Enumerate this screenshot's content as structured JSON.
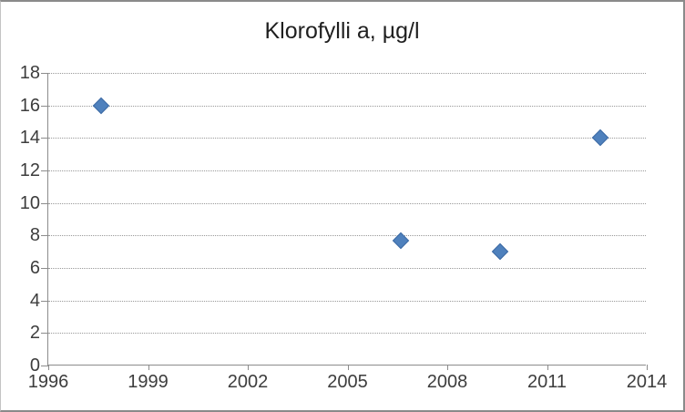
{
  "chart_data": {
    "type": "scatter",
    "title": "Klorofylli a, µg/l",
    "series": [
      {
        "name": "Klorofylli a",
        "x": [
          1997.6,
          2006.6,
          2009.6,
          2012.6
        ],
        "y": [
          16.0,
          7.7,
          7.0,
          14.0
        ]
      }
    ],
    "xlabel": "",
    "ylabel": "",
    "xlim": [
      1996,
      2014
    ],
    "ylim": [
      0,
      18
    ],
    "x_ticks": [
      1996,
      1999,
      2002,
      2005,
      2008,
      2011,
      2014
    ],
    "y_ticks": [
      0,
      2,
      4,
      6,
      8,
      10,
      12,
      14,
      16,
      18
    ],
    "grid": "horizontal-dotted",
    "legend_position": "none",
    "marker": {
      "shape": "diamond",
      "fill": "#4f81bd",
      "border": "#3d6ba5"
    },
    "colors": {
      "background": "#ffffff",
      "chart_border": "#8a8a8a",
      "axis_line": "#8c8c8c",
      "gridline": "#999999",
      "tick_label": "#3d3d3d",
      "title": "#1f1f1f"
    }
  }
}
